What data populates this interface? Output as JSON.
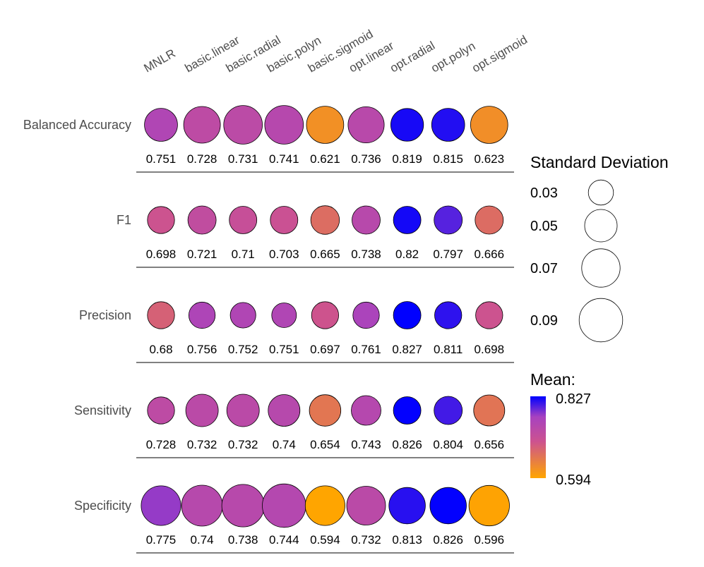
{
  "chart_data": {
    "type": "bubble-matrix",
    "columns": [
      "MNLR",
      "basic.linear",
      "basic.radial",
      "basic.polyn",
      "basic.sigmoid",
      "opt.linear",
      "opt.radial",
      "opt.polyn",
      "opt.sigmoid"
    ],
    "rows": [
      {
        "label": "Balanced Accuracy",
        "mean": [
          0.751,
          0.728,
          0.731,
          0.741,
          0.621,
          0.736,
          0.819,
          0.815,
          0.623
        ],
        "mean_labels": [
          "0.751",
          "0.728",
          "0.731",
          "0.741",
          "0.621",
          "0.736",
          "0.819",
          "0.815",
          "0.623"
        ],
        "sd": [
          0.052,
          0.064,
          0.071,
          0.071,
          0.066,
          0.062,
          0.051,
          0.052,
          0.066
        ]
      },
      {
        "label": "F1",
        "mean": [
          0.698,
          0.721,
          0.71,
          0.703,
          0.665,
          0.738,
          0.82,
          0.797,
          0.666
        ],
        "mean_labels": [
          "0.698",
          "0.721",
          "0.71",
          "0.703",
          "0.665",
          "0.738",
          "0.82",
          "0.797",
          "0.666"
        ],
        "sd": [
          0.035,
          0.038,
          0.036,
          0.036,
          0.039,
          0.038,
          0.036,
          0.038,
          0.038
        ]
      },
      {
        "label": "Precision",
        "mean": [
          0.68,
          0.756,
          0.752,
          0.751,
          0.697,
          0.761,
          0.827,
          0.811,
          0.698
        ],
        "mean_labels": [
          "0.68",
          "0.756",
          "0.752",
          "0.751",
          "0.697",
          "0.761",
          "0.827",
          "0.811",
          "0.698"
        ],
        "sd": [
          0.035,
          0.033,
          0.031,
          0.029,
          0.035,
          0.033,
          0.036,
          0.035,
          0.035
        ]
      },
      {
        "label": "Sensitivity",
        "mean": [
          0.728,
          0.732,
          0.732,
          0.74,
          0.654,
          0.743,
          0.826,
          0.804,
          0.656
        ],
        "mean_labels": [
          "0.728",
          "0.732",
          "0.732",
          "0.74",
          "0.654",
          "0.743",
          "0.826",
          "0.804",
          "0.656"
        ],
        "sd": [
          0.035,
          0.05,
          0.05,
          0.048,
          0.047,
          0.042,
          0.036,
          0.038,
          0.046
        ]
      },
      {
        "label": "Specificity",
        "mean": [
          0.775,
          0.74,
          0.738,
          0.744,
          0.594,
          0.732,
          0.813,
          0.826,
          0.596
        ],
        "mean_labels": [
          "0.775",
          "0.74",
          "0.738",
          "0.744",
          "0.594",
          "0.732",
          "0.813",
          "0.826",
          "0.596"
        ],
        "sd": [
          0.075,
          0.08,
          0.086,
          0.09,
          0.075,
          0.072,
          0.063,
          0.063,
          0.078
        ]
      }
    ],
    "size_legend": {
      "title": "Standard Deviation",
      "values": [
        0.03,
        0.05,
        0.07,
        0.09
      ],
      "labels": [
        "0.03",
        "0.05",
        "0.07",
        "0.09"
      ]
    },
    "color_legend": {
      "title": "Mean:",
      "max_label": "0.827",
      "min_label": "0.594",
      "range": [
        0.594,
        0.827
      ],
      "colors": [
        "#ffa500",
        "#cc5290",
        "#a742c0",
        "#0000ff"
      ]
    }
  }
}
